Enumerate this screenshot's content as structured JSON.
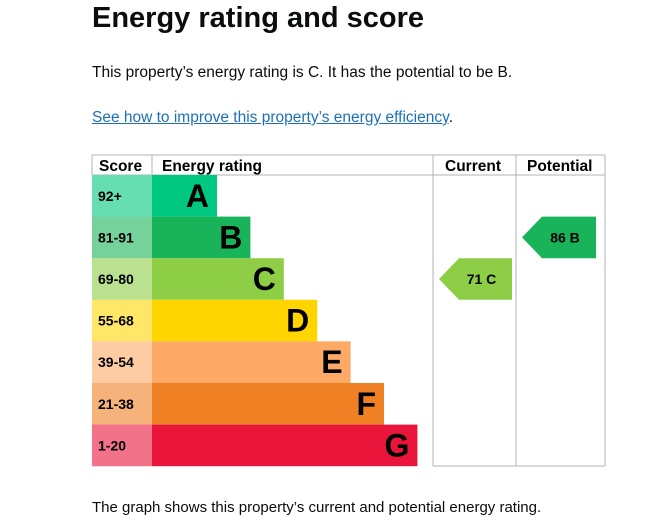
{
  "title": "Energy rating and score",
  "summary": "This property’s energy rating is C. It has the potential to be B.",
  "link": "See how to improve this property’s energy efficiency",
  "link_suffix": ".",
  "footer": "The graph shows this property’s current and potential energy rating.",
  "chart_data": {
    "type": "table",
    "headers": {
      "score": "Score",
      "rating": "Energy rating",
      "current": "Current",
      "potential": "Potential"
    },
    "bands": [
      {
        "score": "92+",
        "letter": "A",
        "color": "#00c781"
      },
      {
        "score": "81-91",
        "letter": "B",
        "color": "#19b459"
      },
      {
        "score": "69-80",
        "letter": "C",
        "color": "#8dce46"
      },
      {
        "score": "55-68",
        "letter": "D",
        "color": "#ffd500"
      },
      {
        "score": "39-54",
        "letter": "E",
        "color": "#fcaa65"
      },
      {
        "score": "21-38",
        "letter": "F",
        "color": "#ef8023"
      },
      {
        "score": "1-20",
        "letter": "G",
        "color": "#e9153b"
      }
    ],
    "current": {
      "value": 71,
      "letter": "C",
      "label": "71  C"
    },
    "potential": {
      "value": 86,
      "letter": "B",
      "label": "86  B"
    }
  }
}
